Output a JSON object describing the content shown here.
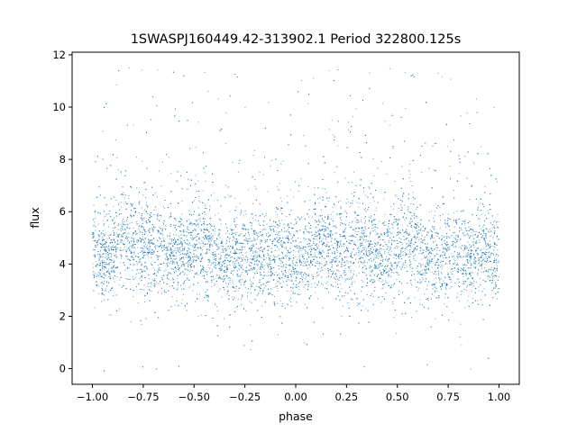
{
  "chart_data": {
    "type": "scatter",
    "title": "1SWASPJ160449.42-313902.1 Period 322800.125s",
    "xlabel": "phase",
    "ylabel": "flux",
    "xlim": [
      -1.1,
      1.1
    ],
    "ylim": [
      -0.6,
      12.1
    ],
    "xticks": [
      -1.0,
      -0.75,
      -0.5,
      -0.25,
      0.0,
      0.25,
      0.5,
      0.75,
      1.0
    ],
    "xtick_labels": [
      "−1.00",
      "−0.75",
      "−0.50",
      "−0.25",
      "0.00",
      "0.25",
      "0.50",
      "0.75",
      "1.00"
    ],
    "yticks": [
      0,
      2,
      4,
      6,
      8,
      10,
      12
    ],
    "ytick_labels": [
      "0",
      "2",
      "4",
      "6",
      "8",
      "10",
      "12"
    ],
    "grid": false,
    "marker_color": "#1f77b4",
    "series": [
      {
        "profile_x": [
          -1.0,
          -0.95,
          -0.9,
          -0.85,
          -0.8,
          -0.75,
          -0.7,
          -0.65,
          -0.6,
          -0.55,
          -0.5,
          -0.45,
          -0.4,
          -0.35,
          -0.3,
          -0.25,
          -0.2,
          -0.15,
          -0.1,
          -0.05,
          0.0,
          0.05,
          0.1,
          0.15,
          0.2,
          0.25,
          0.3,
          0.35,
          0.4,
          0.45,
          0.5,
          0.55,
          0.6,
          0.65,
          0.7,
          0.75,
          0.8,
          0.85,
          0.9,
          0.95,
          1.0
        ],
        "profile_median": [
          4.4,
          4.2,
          4.3,
          5.3,
          4.9,
          4.6,
          4.7,
          4.6,
          4.4,
          4.3,
          4.6,
          4.8,
          4.4,
          4.0,
          4.3,
          4.4,
          4.3,
          4.2,
          4.5,
          4.5,
          4.1,
          4.2,
          4.6,
          4.9,
          4.4,
          4.6,
          4.7,
          4.6,
          4.4,
          4.3,
          4.6,
          4.9,
          4.4,
          4.0,
          4.3,
          4.4,
          4.5,
          4.3,
          4.5,
          4.3,
          4.4
        ],
        "profile_spread": [
          0.9,
          0.8,
          0.9,
          1.0,
          0.9,
          1.0,
          1.0,
          0.9,
          0.8,
          0.9,
          1.0,
          1.0,
          0.9,
          0.8,
          0.9,
          0.9,
          0.9,
          0.8,
          0.9,
          0.9,
          0.9,
          0.8,
          0.9,
          1.0,
          0.9,
          1.0,
          1.0,
          0.9,
          0.8,
          0.9,
          1.0,
          1.0,
          0.9,
          0.8,
          0.9,
          0.9,
          0.9,
          0.8,
          0.9,
          0.9,
          0.9
        ],
        "n_points": 9000
      }
    ]
  }
}
